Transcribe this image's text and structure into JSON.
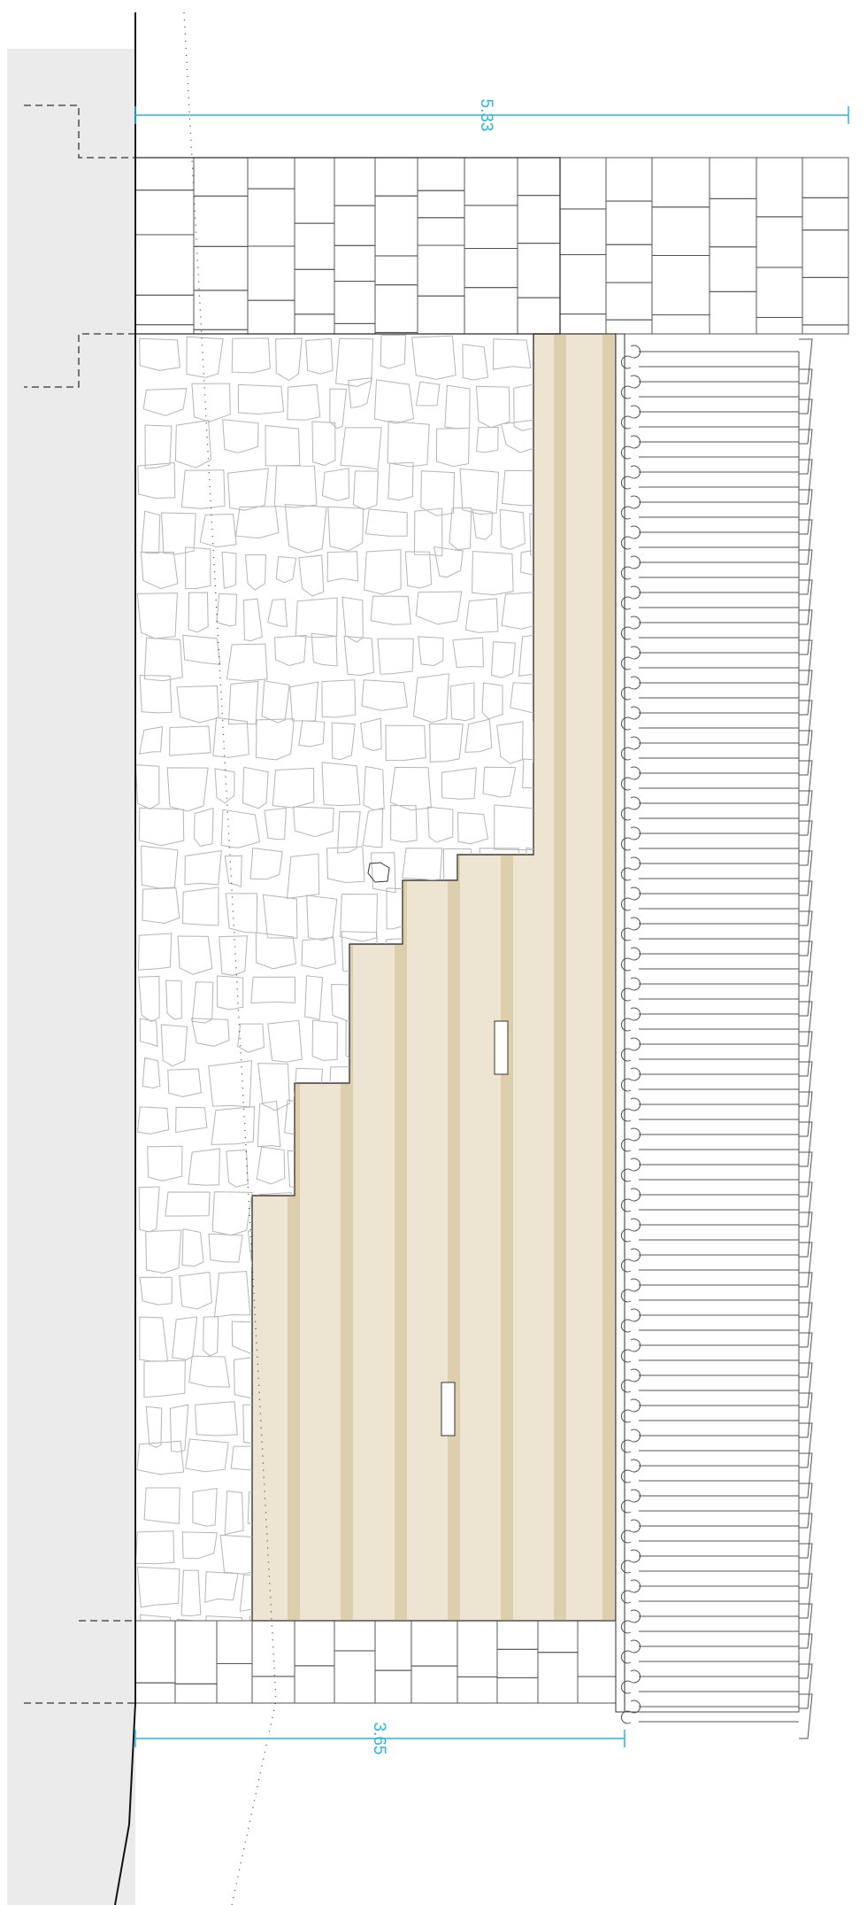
{
  "dimensions": {
    "total_width": "5.33",
    "inner_width": "3.65"
  }
}
